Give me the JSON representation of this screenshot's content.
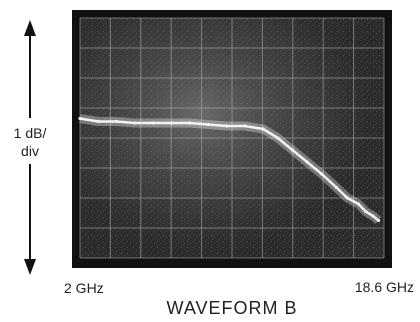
{
  "chart_data": {
    "type": "line",
    "title": "WAVEFORM B",
    "ylabel": [
      "1 dB/",
      "div"
    ],
    "x_start_label": "2 GHz",
    "x_end_label": "18.6 GHz",
    "x_unit": "GHz",
    "xlim": [
      2,
      18.6
    ],
    "y_unit": "divisions",
    "ylim": [
      0,
      8
    ],
    "grid": true,
    "grid_divisions": {
      "x": 10,
      "y": 8
    },
    "series": [
      {
        "x": [
          2.0,
          3.0,
          4.0,
          5.0,
          6.0,
          7.0,
          8.0,
          9.0,
          10.0,
          11.0,
          12.0,
          12.8,
          13.6,
          14.4,
          15.2,
          16.0,
          16.6,
          17.2,
          17.6,
          18.0,
          18.3
        ],
        "values": [
          4.65,
          4.55,
          4.55,
          4.5,
          4.5,
          4.5,
          4.5,
          4.45,
          4.4,
          4.4,
          4.3,
          4.0,
          3.6,
          3.2,
          2.8,
          2.35,
          2.0,
          1.8,
          1.55,
          1.4,
          1.25
        ]
      }
    ],
    "colors": {
      "screen_background": "#2a2a2a",
      "grid": "#b4b4b4",
      "trace": "#f2f2f2",
      "frame": "#111111"
    }
  }
}
